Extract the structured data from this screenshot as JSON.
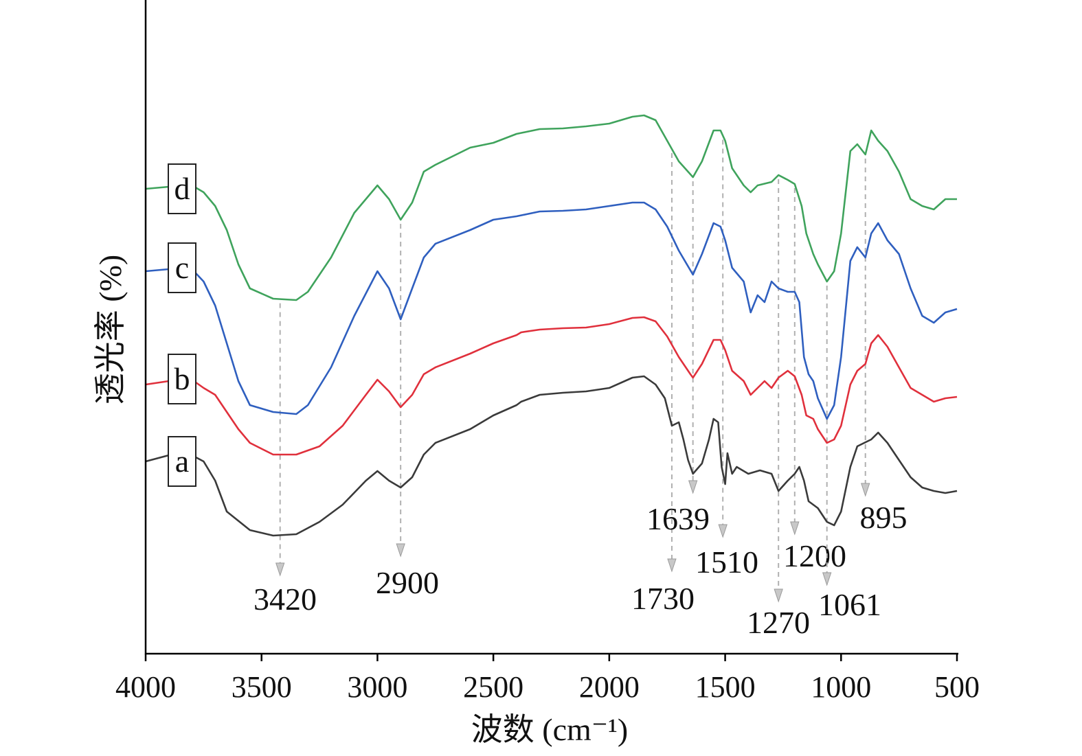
{
  "chart_data": {
    "type": "line",
    "title": "",
    "xlabel": "波数 (cm⁻¹)",
    "ylabel": "透光率 (%)",
    "xlim": [
      4000,
      500
    ],
    "ylim": [
      0,
      95.2
    ],
    "y_units": "arbitrary (stacked, offset traces)",
    "x_ticks": [
      4000,
      3500,
      3000,
      2500,
      2000,
      1500,
      1000,
      500
    ],
    "x_tick_labels": [
      "4000",
      "3500",
      "3000",
      "2500",
      "2000",
      "1500",
      "1000",
      "500"
    ],
    "grid": false,
    "series": [
      {
        "name": "a",
        "color": "#3a3a3a",
        "x": [
          4000,
          3900,
          3800,
          3750,
          3700,
          3650,
          3550,
          3450,
          3350,
          3250,
          3150,
          3050,
          3000,
          2950,
          2900,
          2850,
          2800,
          2750,
          2600,
          2500,
          2400,
          2380,
          2300,
          2200,
          2100,
          2000,
          1900,
          1850,
          1800,
          1760,
          1730,
          1700,
          1680,
          1660,
          1639,
          1600,
          1570,
          1550,
          1530,
          1515,
          1500,
          1490,
          1470,
          1450,
          1400,
          1350,
          1300,
          1270,
          1230,
          1200,
          1180,
          1160,
          1140,
          1100,
          1061,
          1030,
          1000,
          960,
          930,
          900,
          870,
          840,
          800,
          750,
          700,
          650,
          600,
          550,
          500
        ],
        "y": [
          28.0,
          28.9,
          28.9,
          28.0,
          25.2,
          20.7,
          18.0,
          17.2,
          17.4,
          19.2,
          21.7,
          25.2,
          26.6,
          25.2,
          24.2,
          25.7,
          29.0,
          30.7,
          32.7,
          34.7,
          36.2,
          36.7,
          37.7,
          38.0,
          38.2,
          38.7,
          40.2,
          40.4,
          39.2,
          37.2,
          33.2,
          33.7,
          31.2,
          28.2,
          26.2,
          27.7,
          31.2,
          34.2,
          33.7,
          27.2,
          24.7,
          29.2,
          26.2,
          27.2,
          26.2,
          26.7,
          26.2,
          23.7,
          25.2,
          26.2,
          27.2,
          25.2,
          22.2,
          21.2,
          19.2,
          18.7,
          20.7,
          27.2,
          30.2,
          30.7,
          31.2,
          32.2,
          30.7,
          28.2,
          25.7,
          24.2,
          23.7,
          23.4,
          23.7
        ]
      },
      {
        "name": "b",
        "color": "#e0303c",
        "x": [
          4000,
          3900,
          3800,
          3750,
          3700,
          3650,
          3600,
          3550,
          3450,
          3350,
          3250,
          3150,
          3050,
          3000,
          2950,
          2900,
          2850,
          2800,
          2750,
          2600,
          2500,
          2400,
          2380,
          2300,
          2200,
          2100,
          2000,
          1900,
          1850,
          1800,
          1750,
          1700,
          1650,
          1639,
          1600,
          1550,
          1520,
          1500,
          1470,
          1420,
          1390,
          1360,
          1330,
          1300,
          1270,
          1230,
          1200,
          1170,
          1150,
          1120,
          1100,
          1061,
          1030,
          1000,
          960,
          930,
          895,
          870,
          840,
          800,
          750,
          700,
          650,
          600,
          550,
          500
        ],
        "y": [
          39.2,
          39.7,
          39.9,
          38.7,
          37.7,
          35.2,
          32.7,
          30.7,
          29.0,
          29.0,
          30.2,
          33.2,
          37.7,
          39.9,
          38.2,
          35.9,
          37.7,
          40.7,
          41.7,
          43.7,
          45.2,
          46.4,
          46.8,
          47.2,
          47.4,
          47.5,
          48.0,
          48.9,
          49.0,
          48.4,
          46.2,
          43.2,
          40.7,
          40.2,
          42.2,
          45.7,
          45.7,
          44.2,
          41.2,
          39.7,
          37.7,
          38.7,
          39.7,
          38.7,
          40.2,
          41.2,
          40.4,
          37.7,
          34.7,
          34.2,
          32.7,
          30.7,
          31.2,
          33.2,
          39.2,
          41.2,
          42.2,
          45.2,
          46.4,
          44.7,
          41.7,
          38.7,
          37.7,
          36.7,
          37.2,
          37.4
        ]
      },
      {
        "name": "c",
        "color": "#2f5fbf",
        "x": [
          4000,
          3900,
          3800,
          3750,
          3700,
          3650,
          3600,
          3550,
          3450,
          3350,
          3300,
          3200,
          3100,
          3000,
          2950,
          2900,
          2850,
          2800,
          2750,
          2600,
          2500,
          2400,
          2300,
          2200,
          2100,
          2000,
          1900,
          1850,
          1800,
          1750,
          1700,
          1639,
          1600,
          1550,
          1520,
          1500,
          1470,
          1420,
          1390,
          1360,
          1330,
          1300,
          1270,
          1230,
          1200,
          1180,
          1160,
          1140,
          1120,
          1100,
          1061,
          1030,
          1000,
          960,
          930,
          895,
          870,
          840,
          800,
          750,
          700,
          650,
          600,
          550,
          500
        ],
        "y": [
          55.7,
          56.0,
          56.0,
          54.2,
          50.7,
          45.2,
          39.7,
          36.2,
          35.2,
          34.9,
          36.2,
          41.7,
          49.2,
          55.7,
          53.2,
          48.7,
          53.2,
          57.7,
          59.7,
          61.7,
          63.2,
          63.7,
          64.4,
          64.5,
          64.7,
          65.2,
          65.7,
          65.7,
          64.7,
          62.2,
          58.7,
          55.2,
          58.2,
          62.7,
          62.2,
          60.2,
          56.2,
          54.2,
          49.7,
          52.2,
          51.2,
          54.2,
          53.2,
          52.7,
          52.7,
          51.2,
          43.2,
          40.7,
          39.7,
          37.2,
          34.2,
          36.2,
          43.2,
          57.2,
          59.2,
          57.7,
          61.2,
          62.7,
          60.2,
          58.2,
          53.2,
          49.2,
          48.2,
          49.7,
          50.2
        ]
      },
      {
        "name": "d",
        "color": "#3fa35c",
        "x": [
          4000,
          3900,
          3800,
          3750,
          3700,
          3650,
          3600,
          3550,
          3450,
          3350,
          3300,
          3200,
          3100,
          3000,
          2950,
          2900,
          2850,
          2800,
          2750,
          2600,
          2500,
          2400,
          2300,
          2200,
          2100,
          2000,
          1900,
          1850,
          1800,
          1750,
          1700,
          1639,
          1600,
          1550,
          1520,
          1500,
          1470,
          1420,
          1390,
          1360,
          1300,
          1270,
          1230,
          1200,
          1170,
          1150,
          1120,
          1100,
          1061,
          1030,
          1000,
          960,
          930,
          895,
          870,
          840,
          800,
          750,
          700,
          650,
          600,
          550,
          500
        ],
        "y": [
          67.7,
          68.0,
          68.2,
          67.2,
          65.2,
          61.7,
          56.7,
          53.2,
          51.7,
          51.5,
          52.7,
          57.7,
          64.2,
          68.2,
          66.2,
          63.2,
          65.7,
          70.2,
          71.2,
          73.7,
          74.4,
          75.7,
          76.4,
          76.5,
          76.8,
          77.2,
          78.2,
          78.4,
          77.7,
          74.7,
          71.7,
          69.4,
          71.7,
          76.2,
          76.2,
          74.7,
          70.7,
          68.2,
          67.2,
          68.2,
          68.7,
          69.7,
          69.0,
          68.4,
          65.2,
          61.2,
          58.2,
          56.7,
          54.2,
          55.7,
          61.2,
          73.2,
          74.2,
          72.7,
          76.2,
          74.7,
          73.2,
          70.2,
          66.2,
          65.2,
          64.7,
          66.2,
          66.2
        ]
      }
    ],
    "annotations": [
      {
        "wavenumber": 3420,
        "label": "3420"
      },
      {
        "wavenumber": 2900,
        "label": "2900"
      },
      {
        "wavenumber": 1730,
        "label": "1730"
      },
      {
        "wavenumber": 1639,
        "label": "1639"
      },
      {
        "wavenumber": 1510,
        "label": "1510"
      },
      {
        "wavenumber": 1270,
        "label": "1270"
      },
      {
        "wavenumber": 1200,
        "label": "1200"
      },
      {
        "wavenumber": 1061,
        "label": "1061"
      },
      {
        "wavenumber": 895,
        "label": "895"
      }
    ],
    "legend": "curve labels boxed at left of each trace"
  }
}
